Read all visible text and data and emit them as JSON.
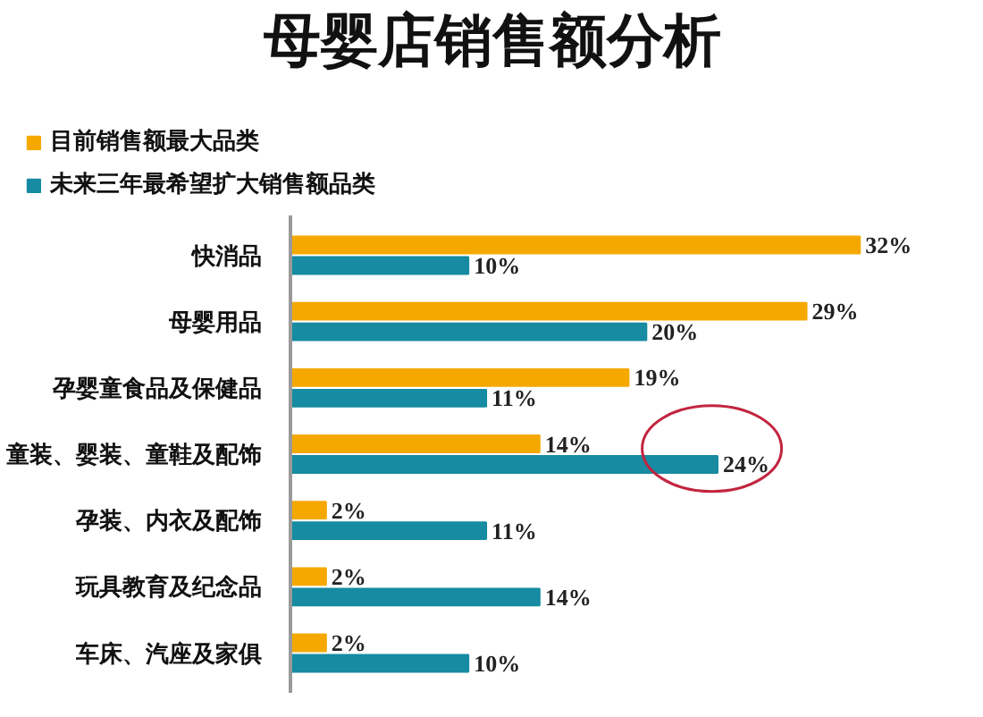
{
  "chart_data": {
    "type": "bar",
    "orientation": "horizontal",
    "title": "母婴店销售额分析",
    "categories": [
      "快消品",
      "母婴用品",
      "孕婴童食品及保健品",
      "童装、婴装、童鞋及配饰",
      "孕装、内衣及配饰",
      "玩具教育及纪念品",
      "车床、汽座及家俱"
    ],
    "series": [
      {
        "name": "目前销售额最大品类",
        "color": "#f5a900",
        "values": [
          32,
          29,
          19,
          14,
          2,
          2,
          2
        ],
        "value_labels": [
          "32%",
          "29%",
          "19%",
          "14%",
          "2%",
          "2%",
          "2%"
        ]
      },
      {
        "name": "未来三年最希望扩大销售额品类",
        "color": "#168ba1",
        "values": [
          10,
          20,
          11,
          24,
          11,
          14,
          10
        ],
        "value_labels": [
          "10%",
          "20%",
          "11%",
          "24%",
          "11%",
          "14%",
          "10%"
        ]
      }
    ],
    "legend": "top left",
    "grid": false
  }
}
